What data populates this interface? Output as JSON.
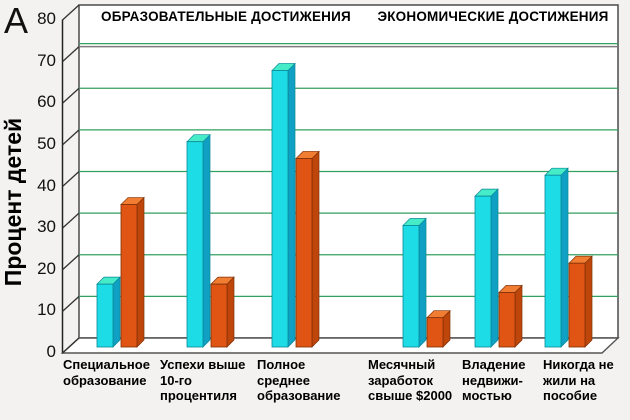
{
  "panel_label": "A",
  "y_axis_title": "Процент детей",
  "section_headers": [
    {
      "text": "ОБРАЗОВАТЕЛЬНЫЕ ДОСТИЖЕНИЯ"
    },
    {
      "text": "ЭКОНОМИЧЕСКИЕ ДОСТИЖЕНИЯ"
    }
  ],
  "chart_data": {
    "type": "bar",
    "title": "",
    "xlabel": "",
    "ylabel": "Процент детей",
    "ylim": [
      0,
      80
    ],
    "ytick_step": 10,
    "ytick_labels": [
      "0",
      "10",
      "20",
      "30",
      "40",
      "50",
      "60",
      "70",
      "80"
    ],
    "grid": true,
    "legend": "none",
    "gridline_color": "#32A05F",
    "categories": [
      "Специальное образование",
      "Успехи выше 10-го процентиля",
      "Полное среднее образование",
      "Месячный заработок свыше $2000",
      "Владение недвижимостью",
      "Никогда не жили на пособие"
    ],
    "category_label_lines": [
      [
        "Специальное",
        "образование"
      ],
      [
        "Успехи выше",
        "10-го",
        "процентиля"
      ],
      [
        "Полное",
        "среднее",
        "образование"
      ],
      [
        "Месячный",
        "заработок",
        "свыше $2000"
      ],
      [
        "Владение",
        "недвижи-",
        "мостью"
      ],
      [
        "Никогда не",
        "жили на",
        "пособие"
      ]
    ],
    "series": [
      {
        "key": "cyan",
        "color_front": "#1EDCE6",
        "color_top": "#46EBC8",
        "color_side": "#0FA0C3",
        "color_edge": "#0A8898",
        "values": [
          15,
          49,
          66,
          29,
          36,
          41
        ]
      },
      {
        "key": "orange",
        "color_front": "#E15514",
        "color_top": "#F07D32",
        "color_side": "#BE460A",
        "color_edge": "#7E2F06",
        "values": [
          34,
          15,
          45,
          7,
          13,
          20
        ]
      }
    ]
  }
}
